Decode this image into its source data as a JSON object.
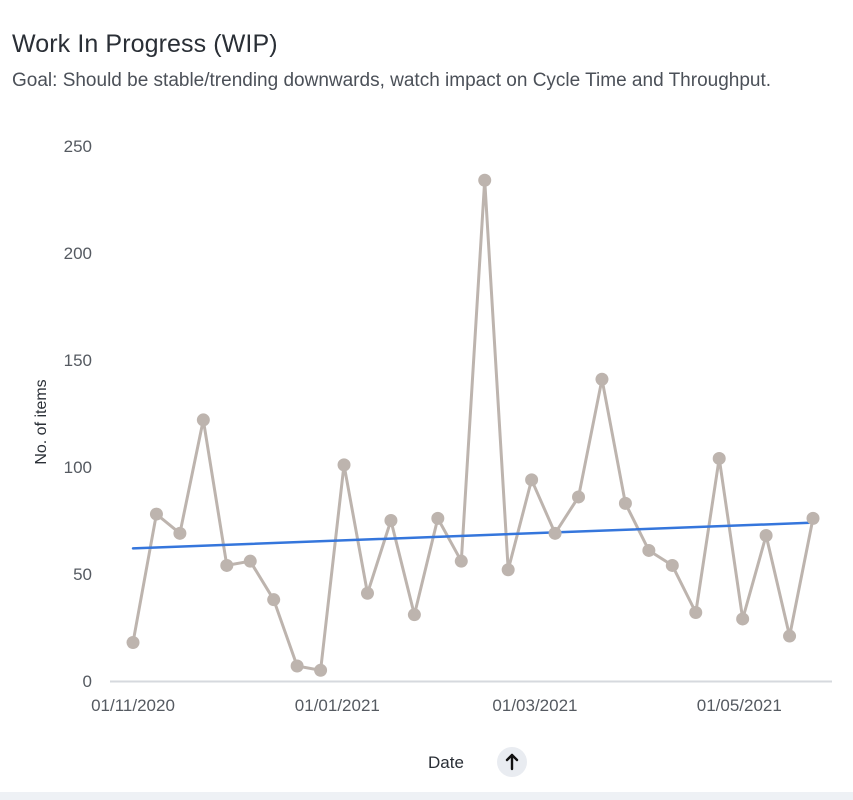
{
  "header": {
    "title": "Work In Progress (WIP)",
    "subtitle": "Goal: Should be stable/trending downwards, watch impact on Cycle Time and Throughput."
  },
  "colors": {
    "series": "#bdb4ae",
    "trend": "#3576dc",
    "axis_text": "#555a61",
    "baseline": "#d6d9de"
  },
  "sort_icon": "arrow-up-icon",
  "chart_data": {
    "type": "line",
    "title": "",
    "xlabel": "Date",
    "ylabel": "No. of items",
    "ylim": [
      0,
      250
    ],
    "yticks": [
      "0",
      "50",
      "100",
      "150",
      "200",
      "250"
    ],
    "xticks": [
      {
        "date": "2020-11-01",
        "label": "01/11/2020"
      },
      {
        "date": "2021-01-01",
        "label": "01/01/2021"
      },
      {
        "date": "2021-03-01",
        "label": "01/03/2021"
      },
      {
        "date": "2021-05-01",
        "label": "01/05/2021"
      }
    ],
    "grid": false,
    "series": [
      {
        "x": [
          "2020-11-01",
          "2020-11-08",
          "2020-11-15",
          "2020-11-22",
          "2020-11-29",
          "2020-12-06",
          "2020-12-13",
          "2020-12-20",
          "2020-12-27",
          "2021-01-03",
          "2021-01-10",
          "2021-01-17",
          "2021-01-24",
          "2021-01-31",
          "2021-02-07",
          "2021-02-14",
          "2021-02-21",
          "2021-02-28",
          "2021-03-07",
          "2021-03-14",
          "2021-03-21",
          "2021-03-28",
          "2021-04-04",
          "2021-04-11",
          "2021-04-18",
          "2021-04-25",
          "2021-05-02",
          "2021-05-09",
          "2021-05-16",
          "2021-05-23"
        ],
        "values": [
          18,
          78,
          69,
          122,
          54,
          56,
          38,
          7,
          5,
          101,
          41,
          75,
          31,
          76,
          56,
          234,
          52,
          94,
          69,
          86,
          141,
          83,
          61,
          54,
          32,
          104,
          29,
          68,
          21,
          76
        ]
      }
    ],
    "trend": {
      "x": [
        "2020-11-01",
        "2021-05-23"
      ],
      "values": [
        62,
        74
      ]
    }
  }
}
